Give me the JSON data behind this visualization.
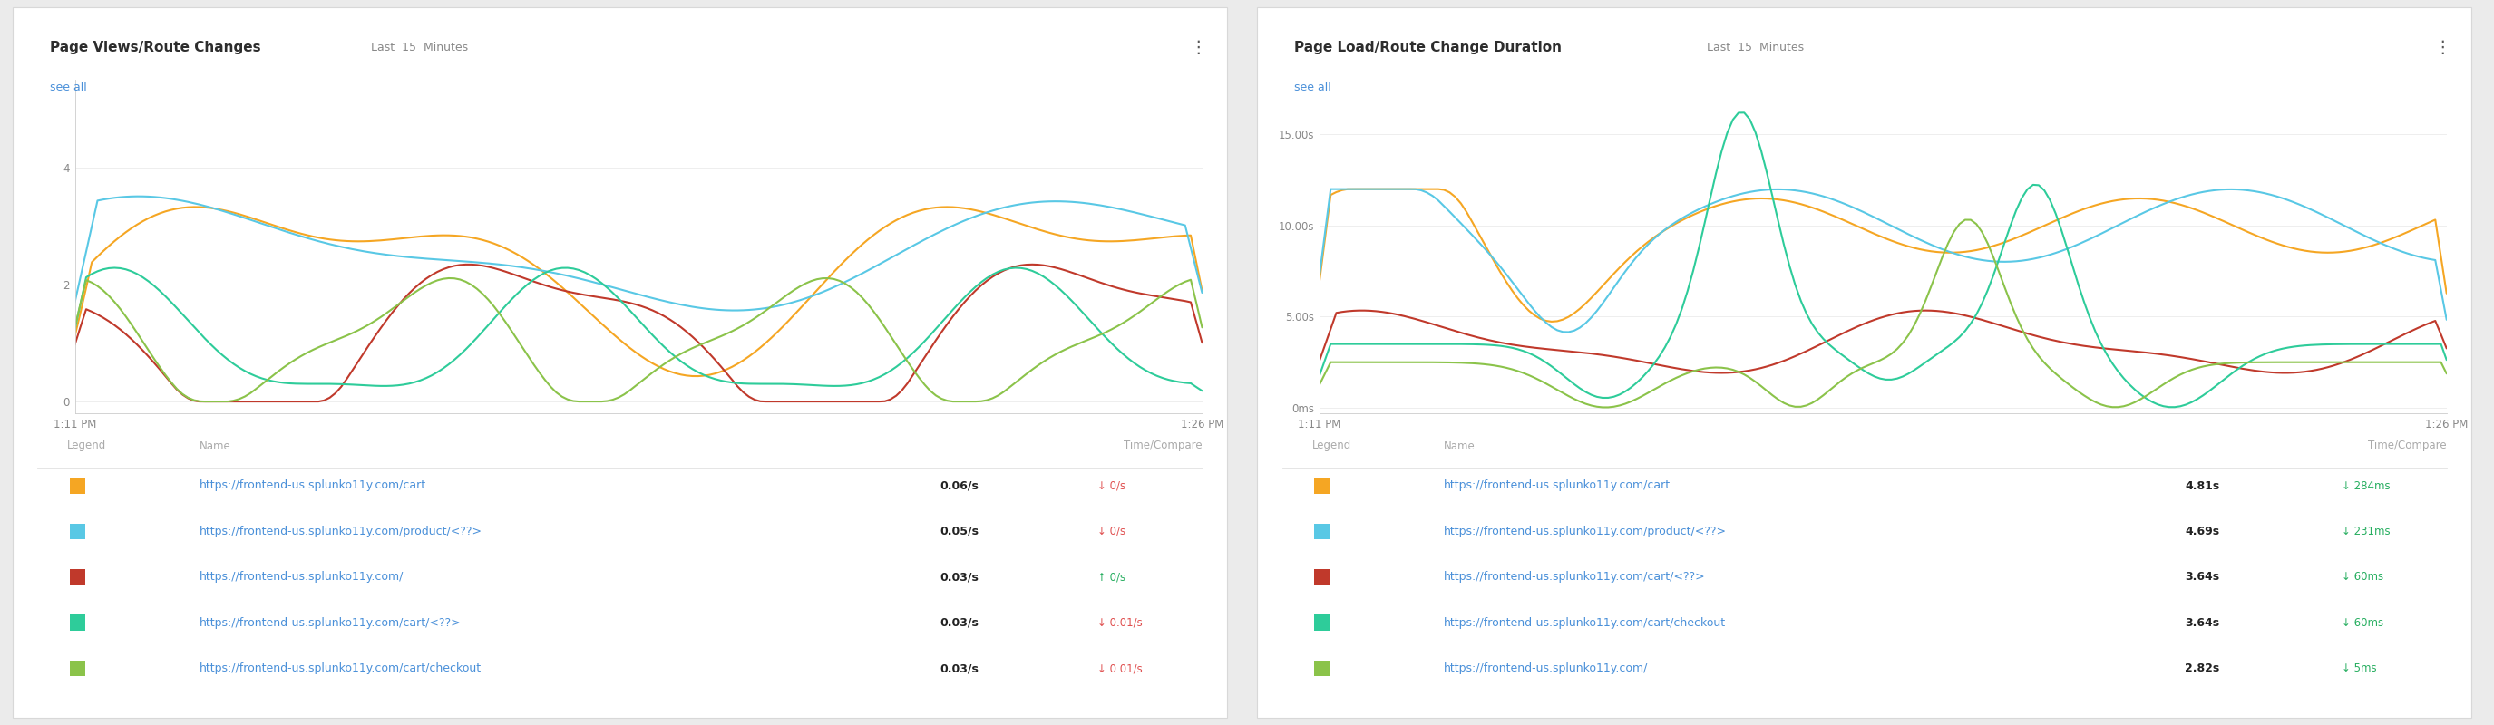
{
  "panel1": {
    "title_bold": "Page Views/Route Changes",
    "title_light": "Last  15  Minutes",
    "see_all": "see all",
    "x_left": "1:11 PM",
    "x_right": "1:26 PM",
    "y_ticks": [
      0,
      2,
      4
    ],
    "ylim": [
      -0.2,
      5.5
    ],
    "series": [
      {
        "color": "#F5A623",
        "label": "https://frontend-us.splunko11y.com/cart",
        "time": "0.06/s",
        "change": "↓ 0/s",
        "change_color": "#e05050"
      },
      {
        "color": "#59C8E5",
        "label": "https://frontend-us.splunko11y.com/product/<??>",
        "time": "0.05/s",
        "change": "↓ 0/s",
        "change_color": "#e05050"
      },
      {
        "color": "#C0392B",
        "label": "https://frontend-us.splunko11y.com/",
        "time": "0.03/s",
        "change": "↑ 0/s",
        "change_color": "#27AE60"
      },
      {
        "color": "#2ECC9A",
        "label": "https://frontend-us.splunko11y.com/cart/<??>",
        "time": "0.03/s",
        "change": "↓ 0.01/s",
        "change_color": "#e05050"
      },
      {
        "color": "#8BC34A",
        "label": "https://frontend-us.splunko11y.com/cart/checkout",
        "time": "0.03/s",
        "change": "↓ 0.01/s",
        "change_color": "#e05050"
      }
    ]
  },
  "panel2": {
    "title_bold": "Page Load/Route Change Duration",
    "title_light": "Last  15  Minutes",
    "see_all": "see all",
    "x_left": "1:11 PM",
    "x_right": "1:26 PM",
    "y_ticks_labels": [
      "0ms",
      "5.00s",
      "10.00s",
      "15.00s"
    ],
    "y_ticks_vals": [
      0,
      5,
      10,
      15
    ],
    "ylim": [
      -0.3,
      18
    ],
    "series": [
      {
        "color": "#F5A623",
        "label": "https://frontend-us.splunko11y.com/cart",
        "time": "4.81s",
        "change": "↓ 284ms",
        "change_color": "#27AE60"
      },
      {
        "color": "#59C8E5",
        "label": "https://frontend-us.splunko11y.com/product/<??>",
        "time": "4.69s",
        "change": "↓ 231ms",
        "change_color": "#27AE60"
      },
      {
        "color": "#C0392B",
        "label": "https://frontend-us.splunko11y.com/cart/<??>",
        "time": "3.64s",
        "change": "↓ 60ms",
        "change_color": "#27AE60"
      },
      {
        "color": "#2ECC9A",
        "label": "https://frontend-us.splunko11y.com/cart/checkout",
        "time": "3.64s",
        "change": "↓ 60ms",
        "change_color": "#27AE60"
      },
      {
        "color": "#8BC34A",
        "label": "https://frontend-us.splunko11y.com/",
        "time": "2.82s",
        "change": "↓ 5ms",
        "change_color": "#27AE60"
      }
    ]
  },
  "bg_color": "#ebebeb",
  "panel_bg": "#ffffff",
  "text_dark": "#333333",
  "text_gray": "#999999",
  "link_color": "#4A90D9",
  "dots_color": "#888888"
}
